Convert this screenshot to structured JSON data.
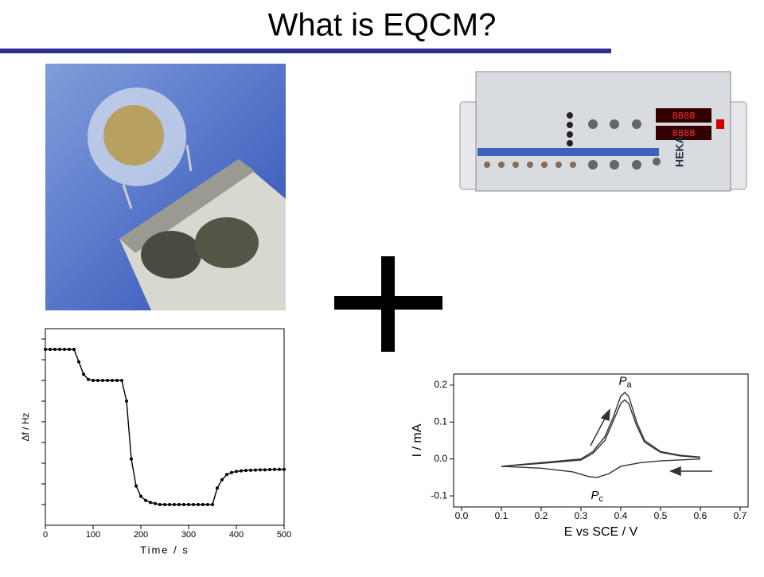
{
  "title": "What is EQCM?",
  "instrument_brand": "HEKA",
  "chart_data": [
    {
      "type": "line",
      "xlabel": "Time / s",
      "ylabel": "Δf / Hz",
      "x": [
        0,
        10,
        20,
        30,
        40,
        50,
        60,
        70,
        80,
        90,
        100,
        110,
        120,
        130,
        140,
        150,
        160,
        170,
        180,
        190,
        200,
        210,
        220,
        230,
        240,
        250,
        260,
        270,
        280,
        290,
        300,
        310,
        320,
        330,
        340,
        350,
        360,
        370,
        380,
        390,
        400,
        410,
        420,
        430,
        440,
        450,
        460,
        470,
        480,
        490,
        500
      ],
      "series": [
        {
          "color": "#000000",
          "values": [
            8.5,
            8.5,
            8.5,
            8.5,
            8.5,
            8.5,
            8.5,
            7.9,
            7.3,
            7.05,
            7.0,
            7.0,
            7.0,
            7.0,
            7.0,
            7.0,
            7.0,
            6.0,
            3.2,
            1.9,
            1.4,
            1.2,
            1.1,
            1.05,
            1.0,
            1.0,
            1.0,
            1.0,
            1.0,
            1.0,
            1.0,
            1.0,
            1.0,
            1.0,
            1.0,
            1.0,
            1.8,
            2.2,
            2.45,
            2.55,
            2.6,
            2.63,
            2.65,
            2.66,
            2.67,
            2.68,
            2.68,
            2.69,
            2.7,
            2.7,
            2.7
          ]
        }
      ],
      "markers": true,
      "xlim": [
        0,
        500
      ],
      "xticks": [
        0,
        100,
        200,
        300,
        400,
        500
      ],
      "ylim": [
        0,
        9.5
      ],
      "yticks": [
        1,
        2,
        3,
        4,
        5,
        6,
        7,
        8,
        9
      ]
    },
    {
      "type": "line",
      "xlabel": "E vs SCE / V",
      "ylabel": "I / mA",
      "series": [
        {
          "color": "#333333",
          "x": [
            0.1,
            0.2,
            0.3,
            0.33,
            0.36,
            0.38,
            0.4,
            0.41,
            0.42,
            0.44,
            0.46,
            0.5,
            0.55,
            0.6
          ],
          "values": [
            -0.02,
            -0.01,
            0.0,
            0.02,
            0.06,
            0.11,
            0.17,
            0.18,
            0.17,
            0.1,
            0.05,
            0.02,
            0.01,
            0.005
          ]
        },
        {
          "color": "#333333",
          "x": [
            0.1,
            0.2,
            0.3,
            0.33,
            0.36,
            0.38,
            0.4,
            0.41,
            0.42,
            0.44,
            0.46,
            0.5,
            0.55,
            0.6
          ],
          "values": [
            -0.02,
            -0.012,
            -0.003,
            0.015,
            0.05,
            0.1,
            0.15,
            0.16,
            0.15,
            0.09,
            0.045,
            0.018,
            0.008,
            0.004
          ]
        },
        {
          "color": "#333333",
          "x": [
            0.6,
            0.5,
            0.45,
            0.4,
            0.37,
            0.34,
            0.32,
            0.28,
            0.2,
            0.1
          ],
          "values": [
            0.0,
            -0.005,
            -0.01,
            -0.02,
            -0.04,
            -0.05,
            -0.048,
            -0.035,
            -0.025,
            -0.02
          ]
        }
      ],
      "annotations": [
        {
          "text": "P",
          "subscript": "a"
        },
        {
          "text": "P",
          "subscript": "c"
        }
      ],
      "xlim": [
        -0.02,
        0.72
      ],
      "xticks": [
        {
          "value": 0,
          "label": "0.0"
        },
        0.1,
        0.2,
        0.3,
        0.4,
        0.5,
        0.6,
        0.7
      ],
      "ylim": [
        -0.13,
        0.23
      ],
      "yticks": [
        {
          "value": -0.1,
          "label": "-0.1"
        },
        {
          "value": 0,
          "label": "0.0"
        },
        0.1,
        0.2
      ]
    }
  ]
}
